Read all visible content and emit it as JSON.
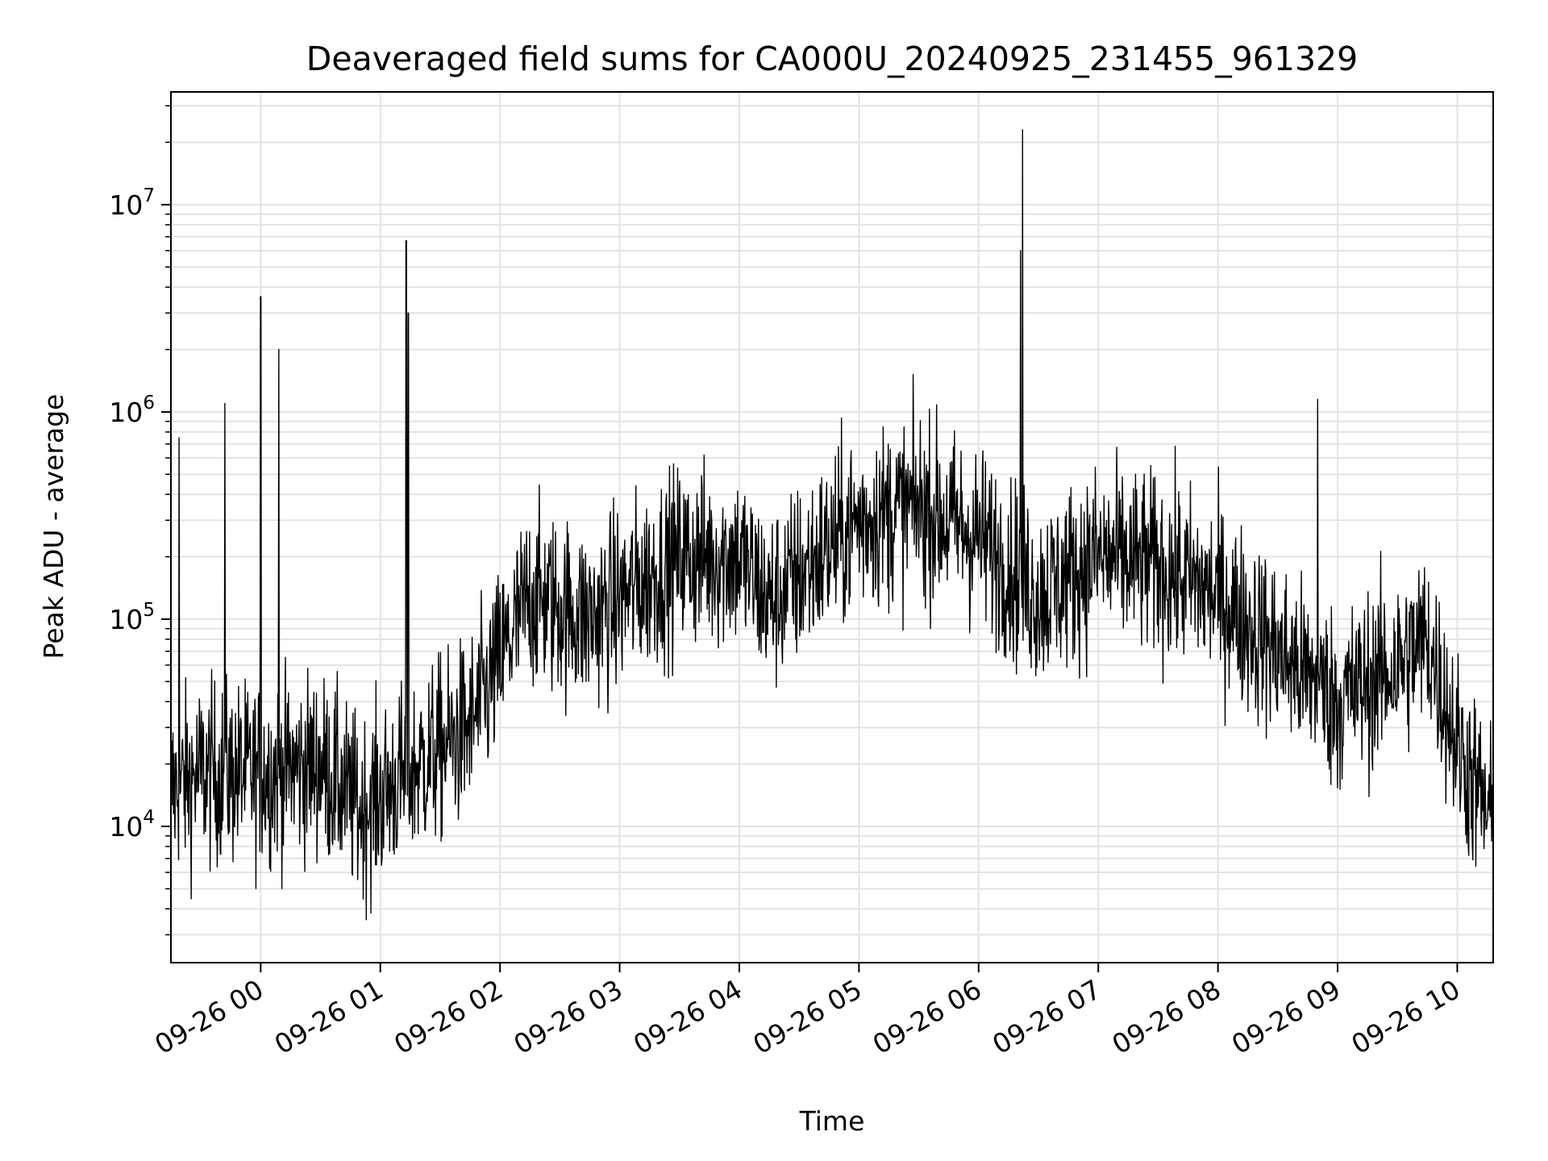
{
  "chart_data": {
    "type": "line",
    "title": "Deaveraged field sums for CA000U_20240925_231455_961329",
    "xlabel": "Time",
    "ylabel": "Peak ADU - average",
    "yscale": "log",
    "ylim": [
      2200,
      35000000
    ],
    "xlim": [
      "2024-09-25 23:15",
      "2024-09-26 10:18"
    ],
    "grid": true,
    "series_color": "#000000",
    "x_ticks": [
      {
        "label": "09-26 00",
        "time": "2024-09-26 00:00"
      },
      {
        "label": "09-26 01",
        "time": "2024-09-26 01:00"
      },
      {
        "label": "09-26 02",
        "time": "2024-09-26 02:00"
      },
      {
        "label": "09-26 03",
        "time": "2024-09-26 03:00"
      },
      {
        "label": "09-26 04",
        "time": "2024-09-26 04:00"
      },
      {
        "label": "09-26 05",
        "time": "2024-09-26 05:00"
      },
      {
        "label": "09-26 06",
        "time": "2024-09-26 06:00"
      },
      {
        "label": "09-26 07",
        "time": "2024-09-26 07:00"
      },
      {
        "label": "09-26 08",
        "time": "2024-09-26 08:00"
      },
      {
        "label": "09-26 09",
        "time": "2024-09-26 09:00"
      },
      {
        "label": "09-26 10",
        "time": "2024-09-26 10:00"
      }
    ],
    "y_ticks": [
      {
        "base": "10",
        "exp": "4",
        "value": 10000
      },
      {
        "base": "10",
        "exp": "5",
        "value": 100000
      },
      {
        "base": "10",
        "exp": "6",
        "value": 1000000
      },
      {
        "base": "10",
        "exp": "7",
        "value": 10000000
      }
    ],
    "envelope": [
      {
        "time": "2024-09-25 23:15",
        "y": 15000
      },
      {
        "time": "2024-09-25 23:30",
        "y": 18000
      },
      {
        "time": "2024-09-26 00:00",
        "y": 18000
      },
      {
        "time": "2024-09-26 00:30",
        "y": 20000
      },
      {
        "time": "2024-09-26 00:50",
        "y": 12000
      },
      {
        "time": "2024-09-26 01:20",
        "y": 20000
      },
      {
        "time": "2024-09-26 01:45",
        "y": 30000
      },
      {
        "time": "2024-09-26 02:15",
        "y": 130000
      },
      {
        "time": "2024-09-26 02:45",
        "y": 100000
      },
      {
        "time": "2024-09-26 03:30",
        "y": 200000
      },
      {
        "time": "2024-09-26 04:00",
        "y": 200000
      },
      {
        "time": "2024-09-26 04:15",
        "y": 120000
      },
      {
        "time": "2024-09-26 05:00",
        "y": 300000
      },
      {
        "time": "2024-09-26 05:30",
        "y": 350000
      },
      {
        "time": "2024-09-26 06:00",
        "y": 250000
      },
      {
        "time": "2024-09-26 06:30",
        "y": 130000
      },
      {
        "time": "2024-09-26 07:00",
        "y": 200000
      },
      {
        "time": "2024-09-26 07:30",
        "y": 180000
      },
      {
        "time": "2024-09-26 08:00",
        "y": 130000
      },
      {
        "time": "2024-09-26 08:30",
        "y": 70000
      },
      {
        "time": "2024-09-26 09:00",
        "y": 40000
      },
      {
        "time": "2024-09-26 09:30",
        "y": 60000
      },
      {
        "time": "2024-09-26 09:45",
        "y": 80000
      },
      {
        "time": "2024-09-26 10:00",
        "y": 25000
      },
      {
        "time": "2024-09-26 10:18",
        "y": 10000
      }
    ],
    "spikes": [
      {
        "time": "2024-09-25 23:19",
        "y": 750000
      },
      {
        "time": "2024-09-25 23:42",
        "y": 1100000
      },
      {
        "time": "2024-09-26 00:00",
        "y": 3600000
      },
      {
        "time": "2024-09-26 00:09",
        "y": 2000000
      },
      {
        "time": "2024-09-26 01:13",
        "y": 6700000
      },
      {
        "time": "2024-09-26 01:14",
        "y": 3000000
      },
      {
        "time": "2024-09-26 06:21",
        "y": 6000000
      },
      {
        "time": "2024-09-26 06:22",
        "y": 23000000
      },
      {
        "time": "2024-09-26 08:50",
        "y": 1150000
      }
    ]
  }
}
